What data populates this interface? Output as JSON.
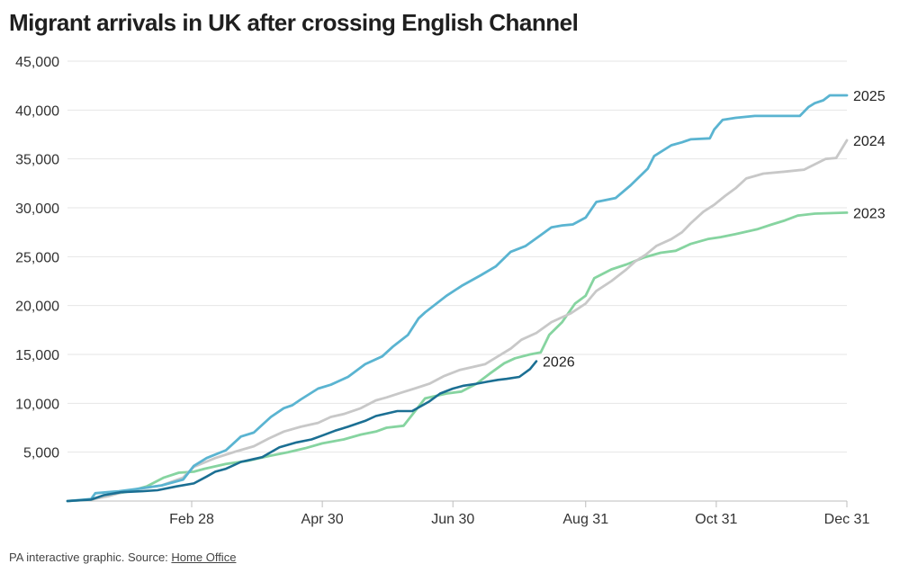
{
  "title": "Migrant arrivals in UK after crossing English Channel",
  "footer": {
    "text": "PA interactive graphic. Source: ",
    "link": "Home Office"
  },
  "chart_data": {
    "type": "line",
    "title": "Migrant arrivals in UK after crossing English Channel",
    "xlabel": "",
    "ylabel": "",
    "x_unit": "day of year",
    "xlim": [
      1,
      365
    ],
    "ylim": [
      0,
      45000
    ],
    "yticks": [
      5000,
      10000,
      15000,
      20000,
      25000,
      30000,
      35000,
      40000,
      45000
    ],
    "ytick_labels": [
      "5,000",
      "10,000",
      "15,000",
      "20,000",
      "25,000",
      "30,000",
      "35,000",
      "40,000",
      "45,000"
    ],
    "xticks": [
      59,
      120,
      181,
      243,
      304,
      365
    ],
    "xtick_labels": [
      "Feb 28",
      "Apr 30",
      "Jun 30",
      "Aug 31",
      "Oct 31",
      "Dec 31"
    ],
    "grid": "horizontal",
    "legend": "direct labels at line ends",
    "series": [
      {
        "name": "2025",
        "color": "#5ab4d1",
        "x": [
          1,
          12,
          14,
          25,
          32,
          45,
          55,
          60,
          66,
          75,
          82,
          88,
          96,
          102,
          106,
          110,
          118,
          124,
          132,
          140,
          148,
          153,
          160,
          165,
          168,
          178,
          185,
          194,
          201,
          208,
          215,
          222,
          227,
          232,
          237,
          243,
          248,
          257,
          264,
          272,
          275,
          283,
          288,
          292,
          301,
          303,
          307,
          313,
          322,
          327,
          333,
          343,
          347,
          350,
          354,
          357,
          365
        ],
        "values": [
          0,
          200,
          800,
          1000,
          1200,
          1600,
          2200,
          3600,
          4400,
          5200,
          6600,
          7000,
          8600,
          9500,
          9800,
          10400,
          11500,
          11900,
          12700,
          14000,
          14800,
          15800,
          17000,
          18700,
          19300,
          21000,
          22000,
          23100,
          24000,
          25500,
          26100,
          27200,
          28000,
          28200,
          28300,
          29000,
          30600,
          31000,
          32300,
          34000,
          35300,
          36400,
          36700,
          37000,
          37100,
          38000,
          39000,
          39200,
          39400,
          39400,
          39400,
          39400,
          40300,
          40700,
          41000,
          41500,
          41500
        ]
      },
      {
        "name": "2024",
        "color": "#c8c8c8",
        "x": [
          1,
          12,
          20,
          30,
          45,
          55,
          60,
          70,
          80,
          88,
          95,
          102,
          110,
          118,
          124,
          130,
          138,
          145,
          150,
          157,
          163,
          170,
          177,
          184,
          190,
          196,
          202,
          208,
          213,
          220,
          227,
          236,
          243,
          248,
          255,
          262,
          266,
          271,
          276,
          283,
          288,
          292,
          298,
          303,
          308,
          313,
          318,
          326,
          336,
          345,
          355,
          360,
          365
        ],
        "values": [
          0,
          150,
          500,
          1100,
          1600,
          2400,
          3500,
          4400,
          5100,
          5600,
          6400,
          7100,
          7600,
          8000,
          8600,
          8900,
          9500,
          10300,
          10600,
          11100,
          11500,
          12000,
          12800,
          13400,
          13700,
          14000,
          14800,
          15600,
          16500,
          17200,
          18300,
          19200,
          20200,
          21500,
          22500,
          23700,
          24500,
          25200,
          26100,
          26800,
          27500,
          28400,
          29600,
          30300,
          31200,
          32000,
          33000,
          33500,
          33700,
          33900,
          35000,
          35100,
          36900
        ]
      },
      {
        "name": "2023",
        "color": "#86d4a0",
        "x": [
          1,
          12,
          20,
          30,
          38,
          46,
          53,
          60,
          65,
          75,
          85,
          95,
          104,
          112,
          120,
          130,
          138,
          145,
          150,
          158,
          168,
          178,
          185,
          192,
          198,
          205,
          210,
          217,
          222,
          226,
          232,
          238,
          243,
          247,
          255,
          262,
          270,
          278,
          285,
          292,
          300,
          306,
          313,
          323,
          330,
          336,
          342,
          350,
          365
        ],
        "values": [
          0,
          150,
          600,
          1000,
          1500,
          2400,
          2900,
          3000,
          3300,
          3800,
          4100,
          4600,
          5000,
          5400,
          5900,
          6300,
          6800,
          7100,
          7500,
          7700,
          10500,
          11000,
          11200,
          12000,
          13000,
          14100,
          14600,
          15000,
          15200,
          17000,
          18300,
          20200,
          21000,
          22800,
          23700,
          24200,
          24900,
          25400,
          25600,
          26300,
          26800,
          27000,
          27300,
          27800,
          28300,
          28700,
          29200,
          29400,
          29500
        ]
      },
      {
        "name": "2026",
        "color": "#1b6f93",
        "x": [
          1,
          12,
          18,
          26,
          36,
          43,
          52,
          60,
          66,
          70,
          75,
          82,
          88,
          92,
          100,
          108,
          115,
          120,
          126,
          132,
          140,
          145,
          155,
          162,
          170,
          175,
          181,
          186,
          192,
          197,
          202,
          206,
          212,
          217,
          220
        ],
        "values": [
          0,
          150,
          600,
          900,
          1000,
          1100,
          1500,
          1800,
          2500,
          3000,
          3300,
          4000,
          4300,
          4500,
          5500,
          6000,
          6300,
          6700,
          7200,
          7600,
          8200,
          8700,
          9200,
          9200,
          10200,
          11000,
          11500,
          11800,
          12000,
          12200,
          12400,
          12500,
          12700,
          13500,
          14300
        ]
      }
    ]
  }
}
